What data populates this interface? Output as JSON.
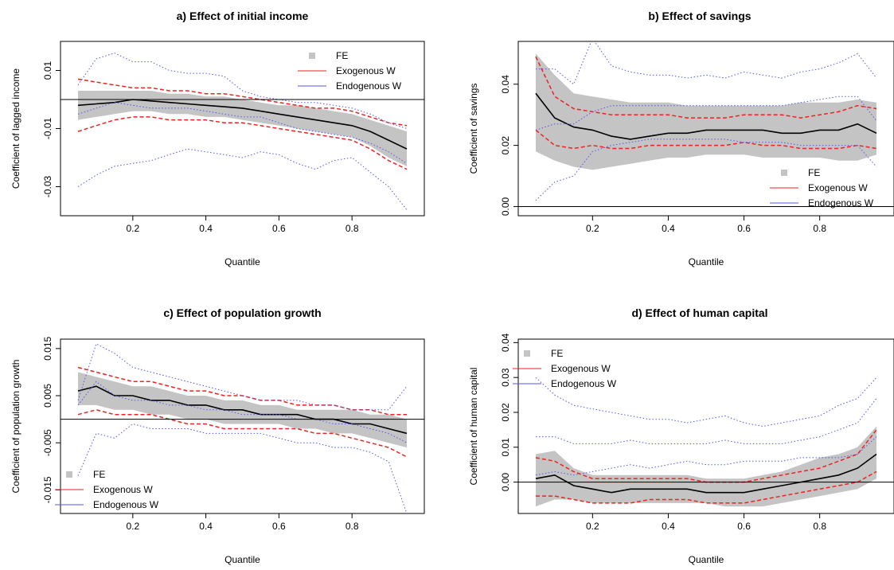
{
  "chart_data": [
    {
      "type": "line",
      "title": "a) Effect of initial income",
      "xlabel": "Quantile",
      "ylabel": "Coefficient of lagged income",
      "xlim": [
        0.05,
        0.95
      ],
      "ylim": [
        -0.04,
        0.02
      ],
      "xticks": [
        "0.2",
        "0.4",
        "0.6",
        "0.8"
      ],
      "yticks": [
        "-0.03",
        "-0.01",
        "0.01"
      ],
      "ref_line": 0,
      "legend": {
        "position": "top-right",
        "entries": [
          "FE",
          "Exogenous W",
          "Endogenous W"
        ]
      },
      "x": [
        0.05,
        0.1,
        0.15,
        0.2,
        0.25,
        0.3,
        0.35,
        0.4,
        0.45,
        0.5,
        0.55,
        0.6,
        0.65,
        0.7,
        0.75,
        0.8,
        0.85,
        0.9,
        0.95
      ],
      "series": [
        {
          "name": "FE",
          "kind": "band",
          "lower": [
            -0.007,
            -0.006,
            -0.005,
            -0.004,
            -0.004,
            -0.005,
            -0.005,
            -0.006,
            -0.006,
            -0.007,
            -0.008,
            -0.009,
            -0.01,
            -0.011,
            -0.012,
            -0.013,
            -0.016,
            -0.02,
            -0.023
          ],
          "upper": [
            0.003,
            0.003,
            0.003,
            0.003,
            0.003,
            0.002,
            0.002,
            0.001,
            0.001,
            0,
            -0.001,
            -0.002,
            -0.002,
            -0.003,
            -0.004,
            -0.005,
            -0.007,
            -0.009,
            -0.011
          ]
        },
        {
          "name": "FE estimate",
          "kind": "line",
          "color": "#000000",
          "values": [
            -0.002,
            -0.0015,
            -0.001,
            0,
            -0.0005,
            -0.001,
            -0.0015,
            -0.002,
            -0.0025,
            -0.003,
            -0.004,
            -0.005,
            -0.006,
            -0.007,
            -0.008,
            -0.009,
            -0.011,
            -0.014,
            -0.017
          ]
        },
        {
          "name": "Exogenous W",
          "kind": "ci",
          "color": "#ee2222",
          "lower": [
            -0.011,
            -0.009,
            -0.007,
            -0.006,
            -0.006,
            -0.007,
            -0.007,
            -0.007,
            -0.008,
            -0.008,
            -0.009,
            -0.01,
            -0.011,
            -0.012,
            -0.013,
            -0.014,
            -0.017,
            -0.021,
            -0.024
          ],
          "upper": [
            0.007,
            0.006,
            0.005,
            0.004,
            0.004,
            0.003,
            0.003,
            0.002,
            0.002,
            0.001,
            0,
            -0.001,
            -0.002,
            -0.003,
            -0.003,
            -0.004,
            -0.006,
            -0.008,
            -0.009
          ]
        },
        {
          "name": "Endogenous W",
          "kind": "ci",
          "color": "#5555ee",
          "lower": [
            -0.03,
            -0.026,
            -0.023,
            -0.022,
            -0.021,
            -0.019,
            -0.017,
            -0.018,
            -0.019,
            -0.02,
            -0.018,
            -0.019,
            -0.022,
            -0.024,
            -0.021,
            -0.02,
            -0.025,
            -0.03,
            -0.038
          ],
          "upper": [
            0.005,
            0.014,
            0.016,
            0.013,
            0.013,
            0.01,
            0.009,
            0.009,
            0.008,
            0.003,
            0.001,
            0,
            -0.001,
            -0.001,
            -0.002,
            -0.003,
            -0.005,
            -0.008,
            -0.01
          ]
        },
        {
          "name": "Endogenous W (median)",
          "kind": "dotted",
          "color": "#5555ee",
          "values": [
            -0.005,
            -0.003,
            -0.001,
            -0.002,
            -0.003,
            -0.003,
            -0.003,
            -0.004,
            -0.005,
            -0.006,
            -0.006,
            -0.008,
            -0.01,
            -0.011,
            -0.012,
            -0.013,
            -0.015,
            -0.018,
            -0.022
          ]
        }
      ]
    },
    {
      "type": "line",
      "title": "b) Effect of savings",
      "xlabel": "Quantile",
      "ylabel": "Coefficient of savings",
      "xlim": [
        0.05,
        0.95
      ],
      "ylim": [
        -0.003,
        0.054
      ],
      "xticks": [
        "0.2",
        "0.4",
        "0.6",
        "0.8"
      ],
      "yticks": [
        "0.00",
        "0.02",
        "0.04"
      ],
      "ref_line": 0,
      "legend": {
        "position": "bottom-right",
        "entries": [
          "FE",
          "Exogenous W",
          "Endogenous W"
        ]
      },
      "x": [
        0.05,
        0.1,
        0.15,
        0.2,
        0.25,
        0.3,
        0.35,
        0.4,
        0.45,
        0.5,
        0.55,
        0.6,
        0.65,
        0.7,
        0.75,
        0.8,
        0.85,
        0.9,
        0.95
      ],
      "series": [
        {
          "name": "FE",
          "kind": "band",
          "lower": [
            0.018,
            0.015,
            0.013,
            0.012,
            0.013,
            0.014,
            0.015,
            0.016,
            0.016,
            0.017,
            0.017,
            0.017,
            0.016,
            0.016,
            0.016,
            0.016,
            0.015,
            0.015,
            0.017
          ],
          "upper": [
            0.05,
            0.043,
            0.037,
            0.036,
            0.035,
            0.034,
            0.034,
            0.034,
            0.033,
            0.033,
            0.033,
            0.033,
            0.033,
            0.033,
            0.034,
            0.034,
            0.034,
            0.035,
            0.034
          ]
        },
        {
          "name": "FE estimate",
          "kind": "line",
          "color": "#000000",
          "values": [
            0.037,
            0.029,
            0.026,
            0.025,
            0.023,
            0.022,
            0.023,
            0.024,
            0.024,
            0.025,
            0.025,
            0.025,
            0.025,
            0.024,
            0.024,
            0.025,
            0.025,
            0.027,
            0.024
          ]
        },
        {
          "name": "Exogenous W",
          "kind": "ci",
          "color": "#ee2222",
          "lower": [
            0.025,
            0.02,
            0.019,
            0.02,
            0.019,
            0.019,
            0.02,
            0.02,
            0.02,
            0.02,
            0.02,
            0.021,
            0.02,
            0.02,
            0.019,
            0.019,
            0.019,
            0.02,
            0.019
          ],
          "upper": [
            0.049,
            0.036,
            0.032,
            0.031,
            0.03,
            0.03,
            0.03,
            0.03,
            0.029,
            0.029,
            0.029,
            0.03,
            0.03,
            0.03,
            0.029,
            0.03,
            0.031,
            0.033,
            0.032
          ]
        },
        {
          "name": "Endogenous W",
          "kind": "ci",
          "color": "#5555ee",
          "lower": [
            0.002,
            0.008,
            0.01,
            0.018,
            0.02,
            0.021,
            0.022,
            0.022,
            0.022,
            0.022,
            0.022,
            0.021,
            0.021,
            0.021,
            0.02,
            0.02,
            0.02,
            0.02,
            0.013
          ],
          "upper": [
            0.045,
            0.045,
            0.04,
            0.055,
            0.046,
            0.044,
            0.043,
            0.043,
            0.042,
            0.043,
            0.042,
            0.044,
            0.043,
            0.042,
            0.044,
            0.045,
            0.047,
            0.05,
            0.042
          ]
        },
        {
          "name": "Endogenous W (median)",
          "kind": "dotted",
          "color": "#5555ee",
          "values": [
            0.025,
            0.027,
            0.027,
            0.031,
            0.033,
            0.033,
            0.033,
            0.033,
            0.033,
            0.033,
            0.033,
            0.033,
            0.033,
            0.033,
            0.034,
            0.035,
            0.036,
            0.036,
            0.028
          ]
        }
      ]
    },
    {
      "type": "line",
      "title": "c) Effect of population growth",
      "xlabel": "Quantile",
      "ylabel": "Coefficient of population growth",
      "xlim": [
        0.05,
        0.95
      ],
      "ylim": [
        -0.02,
        0.017
      ],
      "xticks": [
        "0.2",
        "0.4",
        "0.6",
        "0.8"
      ],
      "yticks": [
        "-0.015",
        "-0.005",
        "0.005",
        "0.015"
      ],
      "ref_line": 0,
      "legend": {
        "position": "bottom-left",
        "entries": [
          "FE",
          "Exogenous W",
          "Endogenous W"
        ]
      },
      "x": [
        0.05,
        0.1,
        0.15,
        0.2,
        0.25,
        0.3,
        0.35,
        0.4,
        0.45,
        0.5,
        0.55,
        0.6,
        0.65,
        0.7,
        0.75,
        0.8,
        0.85,
        0.9,
        0.95
      ],
      "series": [
        {
          "name": "FE",
          "kind": "band",
          "lower": [
            0.003,
            0.003,
            0.002,
            0.002,
            0.001,
            0.001,
            0,
            0,
            -0.001,
            -0.001,
            -0.001,
            -0.001,
            -0.002,
            -0.002,
            -0.003,
            -0.003,
            -0.004,
            -0.005,
            -0.006
          ],
          "upper": [
            0.01,
            0.009,
            0.008,
            0.007,
            0.007,
            0.006,
            0.005,
            0.005,
            0.004,
            0.004,
            0.003,
            0.003,
            0.002,
            0.002,
            0.002,
            0.002,
            0.001,
            0.001,
            0
          ]
        },
        {
          "name": "FE estimate",
          "kind": "line",
          "color": "#000000",
          "values": [
            0.006,
            0.007,
            0.005,
            0.005,
            0.004,
            0.004,
            0.003,
            0.003,
            0.002,
            0.002,
            0.001,
            0.001,
            0.001,
            0,
            0,
            -0.001,
            -0.001,
            -0.002,
            -0.003
          ]
        },
        {
          "name": "Exogenous W",
          "kind": "ci",
          "color": "#ee2222",
          "lower": [
            0.001,
            0.002,
            0.001,
            0.001,
            0.001,
            0,
            -0.001,
            -0.001,
            -0.002,
            -0.002,
            -0.002,
            -0.002,
            -0.002,
            -0.003,
            -0.003,
            -0.004,
            -0.005,
            -0.006,
            -0.008
          ],
          "upper": [
            0.011,
            0.01,
            0.009,
            0.008,
            0.008,
            0.007,
            0.006,
            0.006,
            0.005,
            0.005,
            0.004,
            0.004,
            0.003,
            0.003,
            0.003,
            0.002,
            0.002,
            0.001,
            0.001
          ]
        },
        {
          "name": "Endogenous W",
          "kind": "ci",
          "color": "#5555ee",
          "lower": [
            -0.012,
            -0.003,
            -0.004,
            -0.001,
            -0.002,
            -0.002,
            -0.002,
            -0.003,
            -0.003,
            -0.003,
            -0.003,
            -0.004,
            -0.005,
            -0.005,
            -0.006,
            -0.006,
            -0.007,
            -0.009,
            -0.02
          ],
          "upper": [
            0.004,
            0.016,
            0.014,
            0.011,
            0.01,
            0.009,
            0.008,
            0.007,
            0.006,
            0.005,
            0.004,
            0.004,
            0.004,
            0.003,
            0.003,
            0.002,
            0.002,
            0.002,
            0.007
          ]
        },
        {
          "name": "Endogenous W (median)",
          "kind": "dotted",
          "color": "#5555ee",
          "values": [
            0.003,
            0.008,
            0.005,
            0.004,
            0.004,
            0.003,
            0.003,
            0.002,
            0.002,
            0.001,
            0.001,
            0.001,
            0,
            0,
            -0.001,
            -0.001,
            -0.002,
            -0.003,
            -0.005
          ]
        }
      ]
    },
    {
      "type": "line",
      "title": "d) Effect of human capital",
      "xlabel": "Quantile",
      "ylabel": "Coefficient of human capital",
      "xlim": [
        0.05,
        0.95
      ],
      "ylim": [
        -0.009,
        0.041
      ],
      "xticks": [
        "0.2",
        "0.4",
        "0.6",
        "0.8"
      ],
      "yticks": [
        "0.00",
        "0.01",
        "0.02",
        "0.03",
        "0.04"
      ],
      "ref_line": 0,
      "legend": {
        "position": "top-left",
        "entries": [
          "FE",
          "Exogenous W",
          "Endogenous W"
        ]
      },
      "x": [
        0.05,
        0.1,
        0.15,
        0.2,
        0.25,
        0.3,
        0.35,
        0.4,
        0.45,
        0.5,
        0.55,
        0.6,
        0.65,
        0.7,
        0.75,
        0.8,
        0.85,
        0.9,
        0.95
      ],
      "series": [
        {
          "name": "FE",
          "kind": "band",
          "lower": [
            -0.007,
            -0.005,
            -0.005,
            -0.006,
            -0.006,
            -0.006,
            -0.006,
            -0.006,
            -0.006,
            -0.006,
            -0.007,
            -0.007,
            -0.007,
            -0.006,
            -0.005,
            -0.004,
            -0.003,
            -0.002,
            0.001
          ],
          "upper": [
            0.008,
            0.009,
            0.004,
            0.002,
            0.002,
            0.002,
            0.002,
            0.002,
            0.002,
            0.001,
            0.001,
            0.001,
            0.002,
            0.003,
            0.005,
            0.007,
            0.008,
            0.01,
            0.016
          ]
        },
        {
          "name": "FE estimate",
          "kind": "line",
          "color": "#000000",
          "values": [
            0.001,
            0.002,
            -0.001,
            -0.002,
            -0.003,
            -0.002,
            -0.002,
            -0.002,
            -0.002,
            -0.003,
            -0.003,
            -0.003,
            -0.002,
            -0.001,
            0,
            0.001,
            0.002,
            0.004,
            0.008
          ]
        },
        {
          "name": "Exogenous W",
          "kind": "ci",
          "color": "#ee2222",
          "lower": [
            -0.004,
            -0.004,
            -0.005,
            -0.006,
            -0.006,
            -0.006,
            -0.005,
            -0.005,
            -0.005,
            -0.006,
            -0.006,
            -0.006,
            -0.005,
            -0.004,
            -0.003,
            -0.002,
            -0.001,
            0,
            0.003
          ],
          "upper": [
            0.007,
            0.006,
            0.003,
            0.001,
            0.001,
            0.001,
            0.001,
            0.001,
            0.001,
            0,
            0,
            0,
            0.001,
            0.002,
            0.003,
            0.004,
            0.006,
            0.008,
            0.015
          ]
        },
        {
          "name": "Endogenous W",
          "kind": "ci",
          "color": "#5555ee",
          "lower": [
            0.002,
            0.003,
            0.002,
            0.003,
            0.004,
            0.005,
            0.004,
            0.005,
            0.006,
            0.005,
            0.005,
            0.006,
            0.006,
            0.006,
            0.007,
            0.007,
            0.007,
            0.008,
            0.013
          ],
          "upper": [
            0.03,
            0.025,
            0.022,
            0.021,
            0.02,
            0.019,
            0.018,
            0.018,
            0.017,
            0.018,
            0.019,
            0.017,
            0.016,
            0.017,
            0.018,
            0.019,
            0.022,
            0.024,
            0.03
          ]
        },
        {
          "name": "Endogenous W (median)",
          "kind": "dotted",
          "color": "#5555ee",
          "values": [
            0.013,
            0.013,
            0.011,
            0.011,
            0.011,
            0.012,
            0.011,
            0.011,
            0.011,
            0.011,
            0.012,
            0.011,
            0.011,
            0.011,
            0.012,
            0.013,
            0.015,
            0.017,
            0.024
          ]
        }
      ]
    }
  ]
}
